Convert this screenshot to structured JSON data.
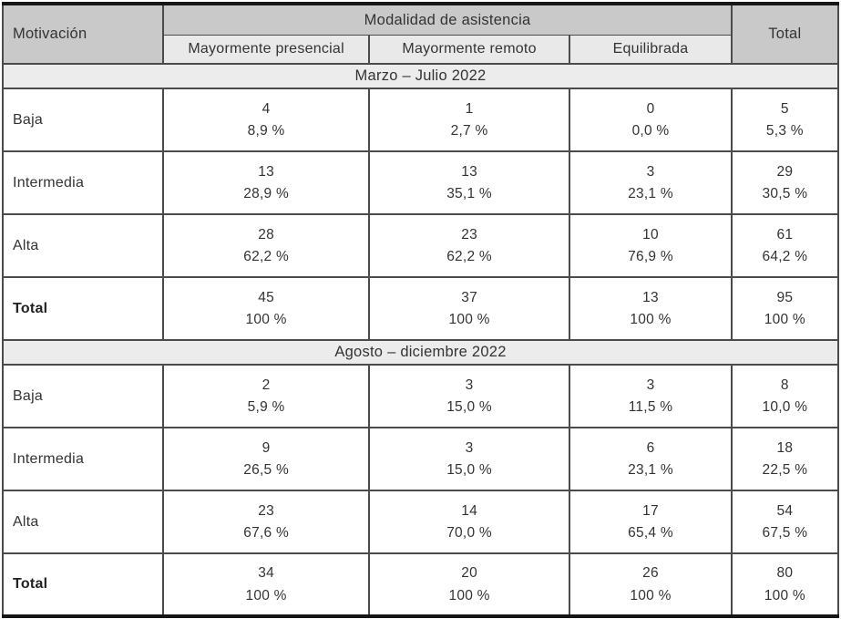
{
  "colors": {
    "header_bg": "#c9c9c9",
    "subheader_bg": "#e9e9e9",
    "band_bg": "#ececec",
    "grid": "#4b4b4b",
    "outer": "#161616",
    "text": "#333333"
  },
  "t": {
    "corner_label": "Motivación",
    "group_header": "Modalidad de asistencia",
    "total_header": "Total",
    "columns": [
      "Mayormente presencial",
      "Mayormente remoto",
      "Equilibrada"
    ],
    "sections": [
      {
        "title": "Marzo – Julio 2022",
        "rows": [
          {
            "label": "Baja",
            "cells": [
              {
                "n": "4",
                "p": "8,9 %"
              },
              {
                "n": "1",
                "p": "2,7 %"
              },
              {
                "n": "0",
                "p": "0,0 %"
              },
              {
                "n": "5",
                "p": "5,3 %"
              }
            ]
          },
          {
            "label": "Intermedia",
            "cells": [
              {
                "n": "13",
                "p": "28,9 %"
              },
              {
                "n": "13",
                "p": "35,1 %"
              },
              {
                "n": "3",
                "p": "23,1 %"
              },
              {
                "n": "29",
                "p": "30,5 %"
              }
            ]
          },
          {
            "label": "Alta",
            "cells": [
              {
                "n": "28",
                "p": "62,2 %"
              },
              {
                "n": "23",
                "p": "62,2 %"
              },
              {
                "n": "10",
                "p": "76,9 %"
              },
              {
                "n": "61",
                "p": "64,2 %"
              }
            ]
          },
          {
            "label": "Total",
            "cells": [
              {
                "n": "45",
                "p": "100 %"
              },
              {
                "n": "37",
                "p": "100 %"
              },
              {
                "n": "13",
                "p": "100 %"
              },
              {
                "n": "95",
                "p": "100 %"
              }
            ]
          }
        ]
      },
      {
        "title": "Agosto – diciembre 2022",
        "rows": [
          {
            "label": "Baja",
            "cells": [
              {
                "n": "2",
                "p": "5,9 %"
              },
              {
                "n": "3",
                "p": "15,0 %"
              },
              {
                "n": "3",
                "p": "11,5 %"
              },
              {
                "n": "8",
                "p": "10,0 %"
              }
            ]
          },
          {
            "label": "Intermedia",
            "cells": [
              {
                "n": "9",
                "p": "26,5 %"
              },
              {
                "n": "3",
                "p": "15,0 %"
              },
              {
                "n": "6",
                "p": "23,1 %"
              },
              {
                "n": "18",
                "p": "22,5 %"
              }
            ]
          },
          {
            "label": "Alta",
            "cells": [
              {
                "n": "23",
                "p": "67,6 %"
              },
              {
                "n": "14",
                "p": "70,0 %"
              },
              {
                "n": "17",
                "p": "65,4 %"
              },
              {
                "n": "54",
                "p": "67,5 %"
              }
            ]
          },
          {
            "label": "Total",
            "cells": [
              {
                "n": "34",
                "p": "100 %"
              },
              {
                "n": "20",
                "p": "100 %"
              },
              {
                "n": "26",
                "p": "100 %"
              },
              {
                "n": "80",
                "p": "100 %"
              }
            ]
          }
        ]
      }
    ]
  }
}
